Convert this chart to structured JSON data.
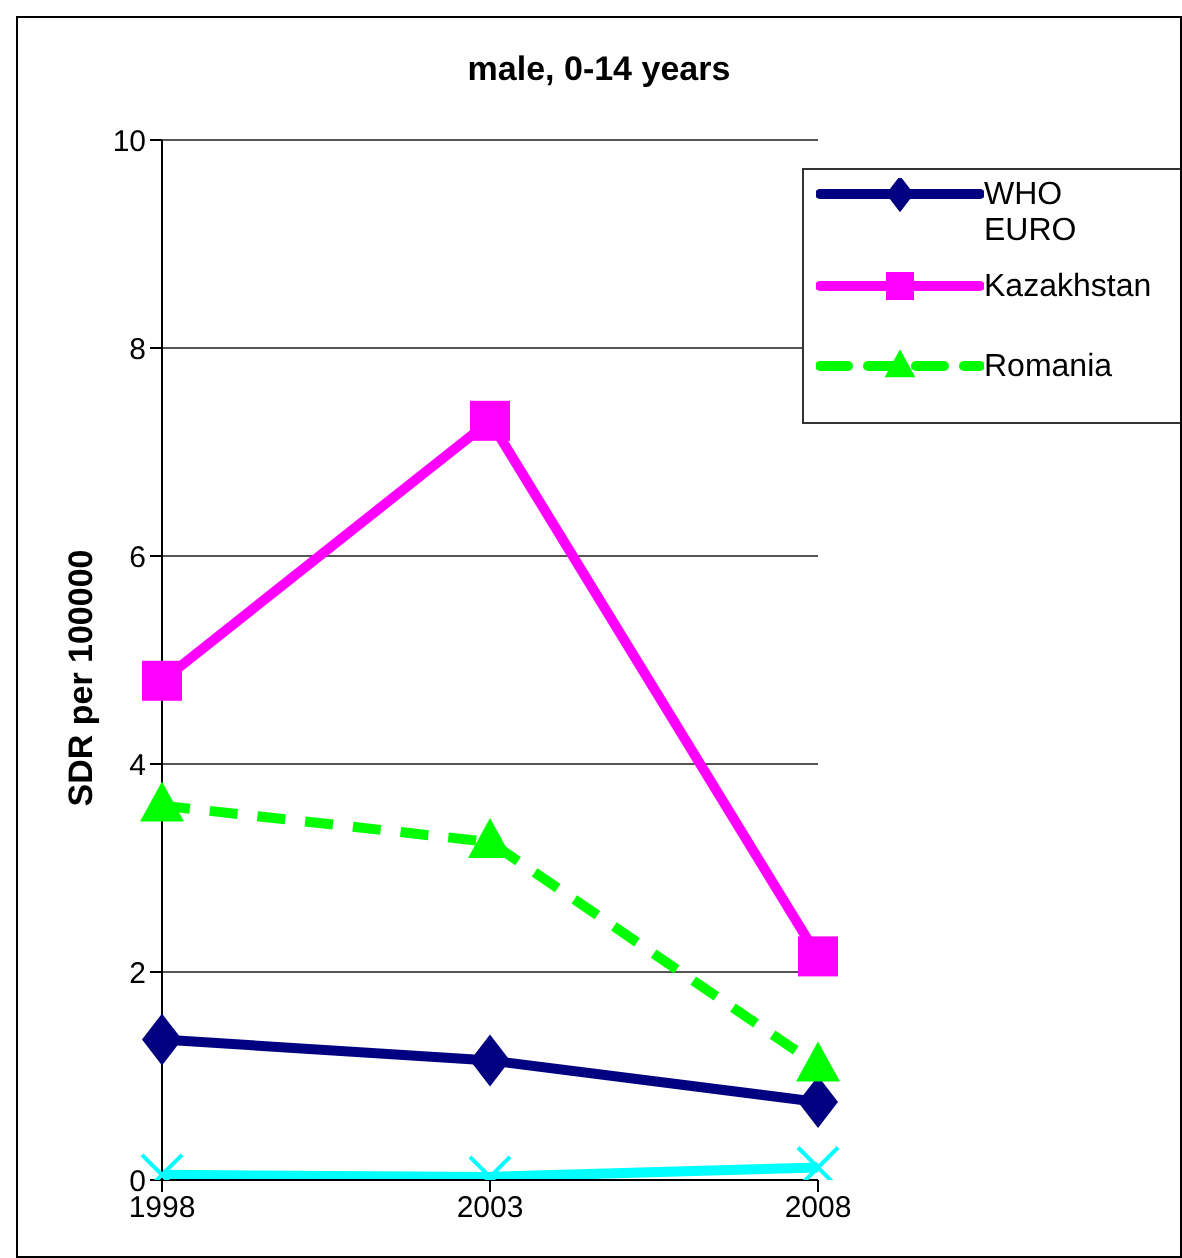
{
  "chart_data": {
    "type": "line",
    "title": "male, 0-14 years",
    "ylabel": "SDR per 100000",
    "categories": [
      "1998",
      "2003",
      "2008"
    ],
    "ylim": [
      0,
      10
    ],
    "yticks": [
      0,
      2,
      4,
      6,
      8,
      10
    ],
    "grid": "y",
    "legend": "top right",
    "series": [
      {
        "name": "WHO EURO",
        "color": "#000080",
        "values": [
          1.35,
          1.15,
          0.75
        ],
        "marker": "diamond",
        "line_style": "solid"
      },
      {
        "name": "Kazakhstan",
        "color": "#ff00ff",
        "values": [
          4.8,
          7.3,
          2.15
        ],
        "marker": "square",
        "line_style": "solid"
      },
      {
        "name": "Romania",
        "color": "#00ff00",
        "values": [
          3.6,
          3.25,
          1.1
        ],
        "marker": "triangle",
        "line_style": "dashed"
      },
      {
        "color": "#00ffff",
        "values": [
          0.05,
          0.03,
          0.12
        ],
        "marker": "cross",
        "line_style": "solid"
      }
    ]
  }
}
